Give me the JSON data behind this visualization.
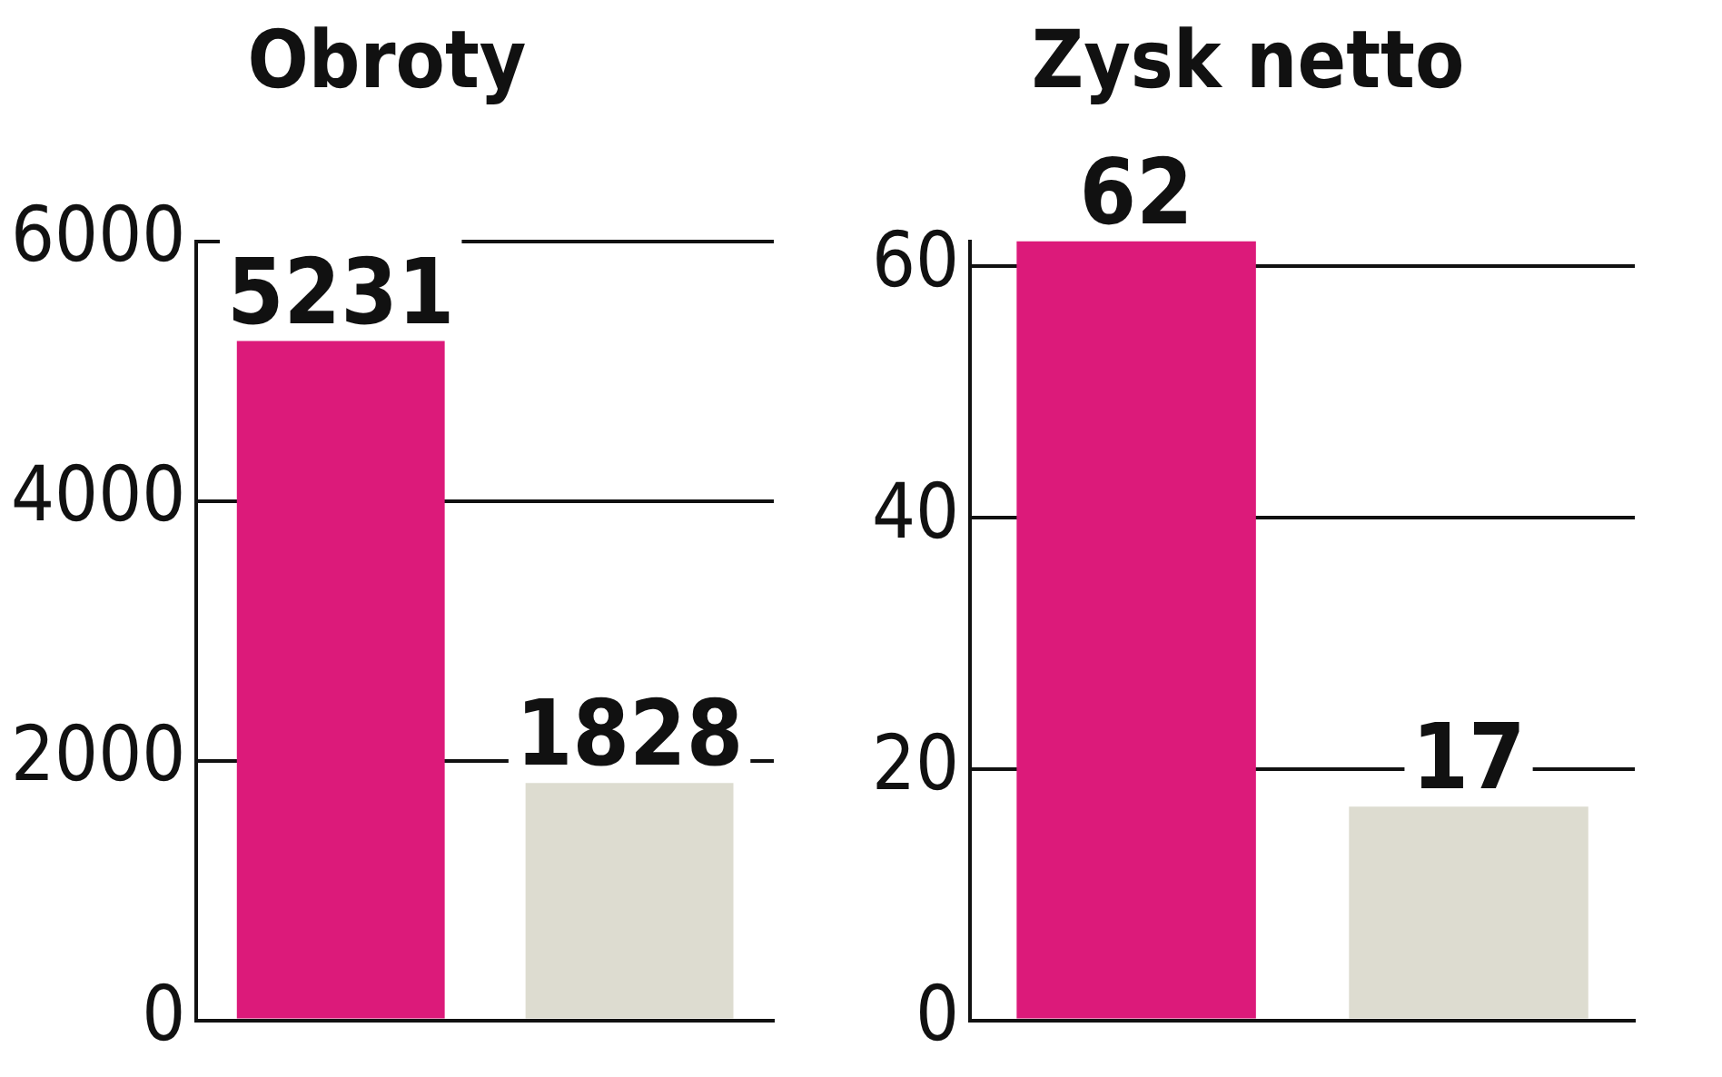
{
  "chart_data": [
    {
      "type": "bar",
      "title": "Obroty",
      "categories": [
        null,
        null
      ],
      "values": [
        5231,
        1828
      ],
      "colors": [
        "#dc1a7a",
        "#dddcd0"
      ],
      "ylim": [
        0,
        6000
      ],
      "yticks": [
        0,
        2000,
        4000,
        6000
      ],
      "grid": "y",
      "data_labels": true,
      "tick_labels": "y",
      "legend": false
    },
    {
      "type": "bar",
      "title": "Zysk netto",
      "categories": [
        null,
        null
      ],
      "values": [
        62,
        17
      ],
      "colors": [
        "#dc1a7a",
        "#dddcd0"
      ],
      "ylim": [
        0,
        62
      ],
      "yticks": [
        0,
        20,
        40,
        60
      ],
      "grid": "y",
      "data_labels": true,
      "tick_labels": "y",
      "legend": false
    }
  ]
}
